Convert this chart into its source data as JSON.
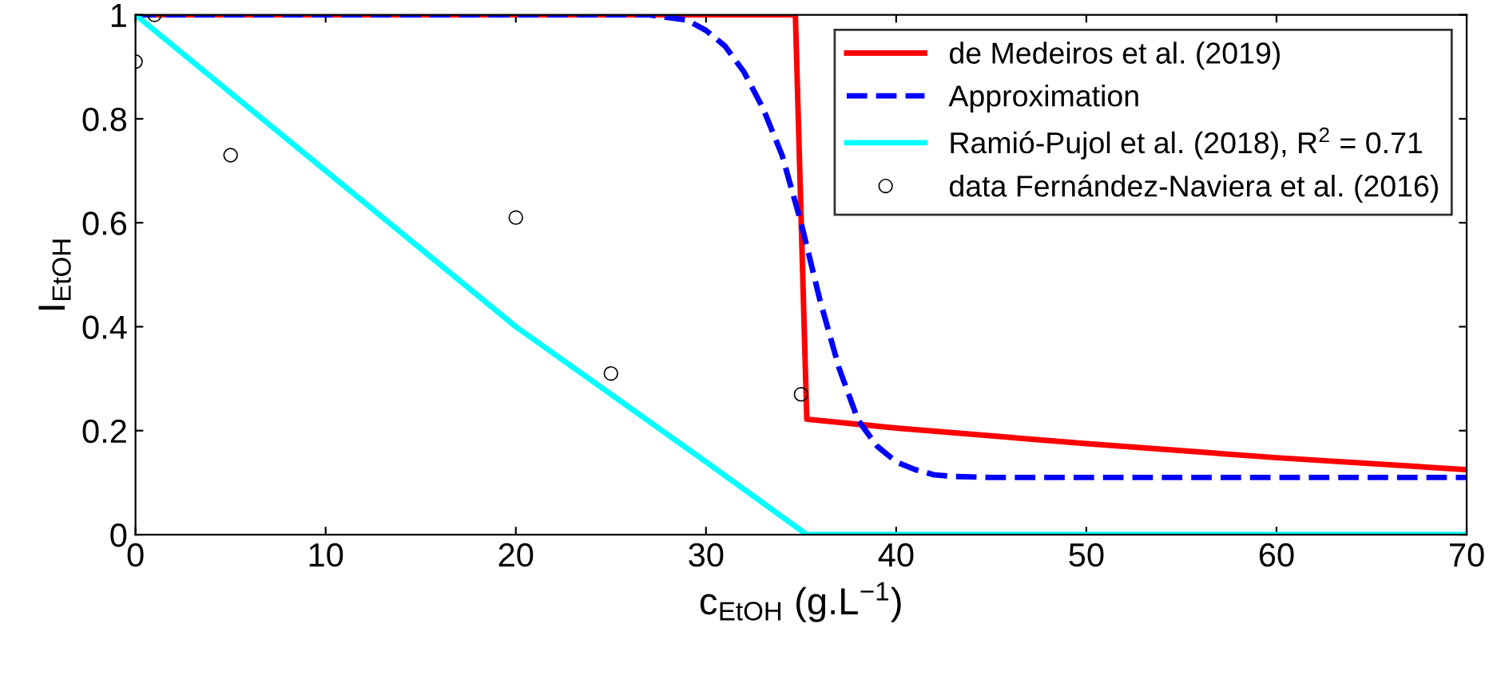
{
  "chart_data": {
    "type": "line",
    "xlabel": "c$_{EtOH}$ (g.L$^{−1}$)",
    "ylabel": "I$_{EtOH}$",
    "xlim": [
      0,
      70
    ],
    "ylim": [
      0,
      1
    ],
    "xticks": [
      0,
      10,
      20,
      30,
      40,
      50,
      60,
      70
    ],
    "yticks": [
      0,
      0.2,
      0.4,
      0.6,
      0.8,
      1
    ],
    "grid": false,
    "legend": "top right",
    "series": [
      {
        "name": "de Medeiros et al. (2019)",
        "color": "#ff0000",
        "line_style": "solid",
        "x": [
          0,
          34.7,
          35.3,
          40,
          50,
          60,
          70
        ],
        "values": [
          1,
          1,
          0.222,
          0.205,
          0.175,
          0.148,
          0.125
        ]
      },
      {
        "name": "Approximation",
        "color": "#0000ff",
        "line_style": "dashed",
        "x": [
          0,
          27,
          29,
          30,
          31,
          32,
          33,
          34,
          35,
          36,
          37,
          38,
          39,
          40,
          41,
          42,
          43,
          45,
          50,
          60,
          70
        ],
        "values": [
          1,
          1,
          0.99,
          0.97,
          0.94,
          0.89,
          0.82,
          0.73,
          0.6,
          0.45,
          0.32,
          0.22,
          0.17,
          0.14,
          0.125,
          0.115,
          0.112,
          0.11,
          0.11,
          0.11,
          0.11
        ]
      },
      {
        "name": "Ramió-Pujol et al. (2018), R$^{2}$ = 0.71",
        "color": "#00ffff",
        "line_style": "solid",
        "x": [
          0,
          5,
          10,
          15,
          20,
          25,
          30,
          35.3,
          70
        ],
        "values": [
          1,
          0.85,
          0.7,
          0.55,
          0.4,
          0.27,
          0.14,
          0,
          0
        ]
      },
      {
        "name": "data Fernández-Naviera et al. (2016)",
        "type": "scatter",
        "color": "#000000",
        "marker": "circle",
        "x": [
          0,
          1,
          5,
          20,
          25,
          35
        ],
        "values": [
          0.91,
          1,
          0.73,
          0.61,
          0.31,
          0.27
        ]
      }
    ]
  }
}
